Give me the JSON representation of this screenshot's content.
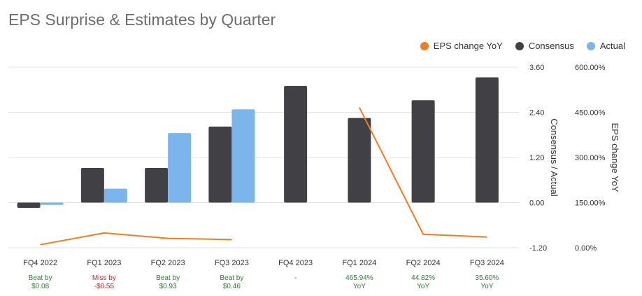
{
  "title": "EPS Surprise & Estimates by Quarter",
  "legend": {
    "eps_change": "EPS change YoY",
    "consensus": "Consensus",
    "actual": "Actual"
  },
  "colors": {
    "consensus": "#414045",
    "actual": "#7cb5ec",
    "eps_change": "#f47c20",
    "beat": "#2e7d32",
    "miss": "#c62828",
    "neutral": "#c62828"
  },
  "chart_data": {
    "type": "bar",
    "title": "EPS Surprise & Estimates by Quarter",
    "categories": [
      "FQ4 2022",
      "FQ1 2023",
      "FQ2 2023",
      "FQ3 2023",
      "FQ4 2023",
      "FQ1 2024",
      "FQ2 2024",
      "FQ3 2024"
    ],
    "series": [
      {
        "name": "Consensus",
        "axis": "left",
        "values": [
          -0.14,
          0.92,
          0.92,
          2.02,
          3.1,
          2.25,
          2.72,
          3.33
        ]
      },
      {
        "name": "Actual",
        "axis": "left",
        "values": [
          -0.06,
          0.37,
          1.85,
          2.48,
          null,
          null,
          null,
          null
        ]
      },
      {
        "name": "EPS change YoY",
        "axis": "right",
        "type": "line",
        "values": [
          10.0,
          49.0,
          31.0,
          27.0,
          null,
          465.94,
          44.82,
          35.6
        ]
      }
    ],
    "y_left": {
      "label": "Consensus / Actual",
      "ylim": [
        -1.2,
        3.6
      ],
      "ticks": [
        "3.60",
        "2.40",
        "1.20",
        "0.00",
        "-1.20"
      ]
    },
    "y_right": {
      "label": "EPS change YoY",
      "ylim": [
        0,
        600
      ],
      "ticks": [
        "600.00%",
        "450.00%",
        "300.00%",
        "150.00%",
        "0.00%"
      ]
    },
    "annotations": [
      {
        "lines": [
          "Beat by",
          "$0.08"
        ],
        "status": "beat"
      },
      {
        "lines": [
          "Miss by",
          "-$0.55"
        ],
        "status": "miss"
      },
      {
        "lines": [
          "Beat by",
          "$0.93"
        ],
        "status": "beat"
      },
      {
        "lines": [
          "Beat by",
          "$0.46"
        ],
        "status": "beat"
      },
      {
        "lines": [
          "-"
        ],
        "status": "neutral"
      },
      {
        "lines": [
          "465.94%",
          "YoY"
        ],
        "status": "beat"
      },
      {
        "lines": [
          "44.82%",
          "YoY"
        ],
        "status": "beat"
      },
      {
        "lines": [
          "35.60%",
          "YoY"
        ],
        "status": "beat"
      }
    ],
    "grid": true,
    "legend_position": "top-right"
  }
}
